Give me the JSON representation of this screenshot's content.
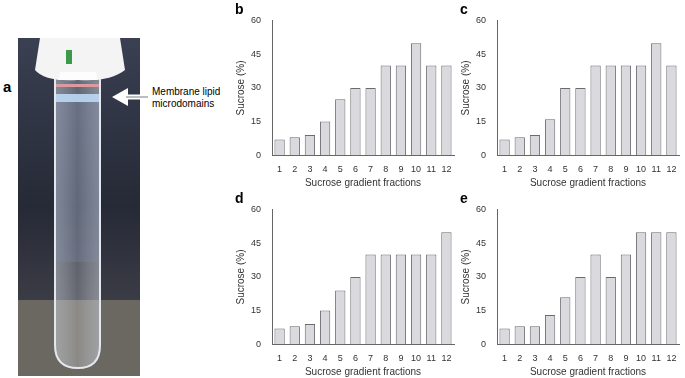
{
  "photo": {
    "label": "a",
    "annotation": "Membrane lipid microdomains"
  },
  "chart_data": [
    {
      "type": "bar",
      "title": "b",
      "x_label": "Sucrose gradient fractions",
      "y_label": "Sucrose (%)",
      "categories": [
        "1",
        "2",
        "3",
        "4",
        "5",
        "6",
        "7",
        "8",
        "9",
        "10",
        "11",
        "12"
      ],
      "values": [
        7,
        8,
        9,
        15,
        25,
        30,
        30,
        40,
        40,
        50,
        40,
        40
      ],
      "color": "#d9d9de",
      "ylim": [
        0,
        60
      ],
      "yticks": [
        0,
        15,
        30,
        45,
        60
      ],
      "grid": false
    },
    {
      "type": "bar",
      "title": "c",
      "x_label": "Sucrose gradient fractions",
      "y_label": "Sucrose (%)",
      "categories": [
        "1",
        "2",
        "3",
        "4",
        "5",
        "6",
        "7",
        "8",
        "9",
        "10",
        "11",
        "12"
      ],
      "values": [
        7,
        8,
        9,
        16,
        30,
        30,
        40,
        40,
        40,
        40,
        50,
        40
      ],
      "color": "#d9d9de",
      "ylim": [
        0,
        60
      ],
      "yticks": [
        0,
        15,
        30,
        45,
        60
      ],
      "grid": false
    },
    {
      "type": "bar",
      "title": "d",
      "x_label": "Sucrose gradient fractions",
      "y_label": "Sucrose (%)",
      "categories": [
        "1",
        "2",
        "3",
        "4",
        "5",
        "6",
        "7",
        "8",
        "9",
        "10",
        "11",
        "12"
      ],
      "values": [
        7,
        8,
        9,
        15,
        24,
        30,
        40,
        40,
        40,
        40,
        40,
        50
      ],
      "color": "#d9d9de",
      "ylim": [
        0,
        60
      ],
      "yticks": [
        0,
        15,
        30,
        45,
        60
      ],
      "grid": false
    },
    {
      "type": "bar",
      "title": "e",
      "x_label": "Sucrose gradient fractions",
      "y_label": "Sucrose (%)",
      "categories": [
        "1",
        "2",
        "3",
        "4",
        "5",
        "6",
        "7",
        "8",
        "9",
        "10",
        "11",
        "12"
      ],
      "values": [
        7,
        8,
        8,
        13,
        21,
        30,
        40,
        30,
        40,
        50,
        50,
        50
      ],
      "color": "#d9d9de",
      "ylim": [
        0,
        60
      ],
      "yticks": [
        0,
        15,
        30,
        45,
        60
      ],
      "grid": false
    }
  ]
}
